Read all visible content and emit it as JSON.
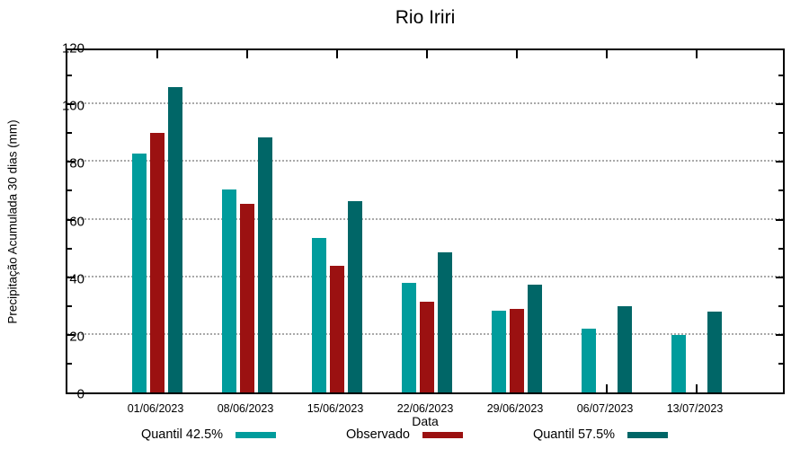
{
  "title": "Rio Iriri",
  "chart_data": {
    "type": "bar",
    "title": "Rio Iriri",
    "xlabel": "Data",
    "ylabel": "Precipitação Acumulada 30 dias (mm)",
    "ylim": [
      0,
      120
    ],
    "ytick_major_step": 20,
    "ytick_minor_step": 10,
    "ytick_labels": [
      "0",
      "20",
      "40",
      "60",
      "80",
      "100",
      "120"
    ],
    "grid": "horizontal dotted gridlines at major y ticks (20-100)",
    "legend_position": "bottom center, horizontal",
    "categories": [
      "01/06/2023",
      "08/06/2023",
      "15/06/2023",
      "22/06/2023",
      "29/06/2023",
      "06/07/2023",
      "13/07/2023"
    ],
    "series": [
      {
        "name": "Quantil 42.5%",
        "color": "#009c9c",
        "values": [
          83,
          70.5,
          53.5,
          38,
          28.5,
          22,
          20
        ]
      },
      {
        "name": "Observado",
        "color": "#9b1111",
        "values": [
          90,
          65.5,
          44,
          31.5,
          29,
          null,
          null
        ]
      },
      {
        "name": "Quantil 57.5%",
        "color": "#006667",
        "values": [
          106,
          88.5,
          66.5,
          48.5,
          37.5,
          30,
          28
        ]
      }
    ]
  },
  "colors": {
    "axis": "#000000",
    "grid": "#a9a9a9",
    "background": "#ffffff",
    "text": "#000000"
  }
}
